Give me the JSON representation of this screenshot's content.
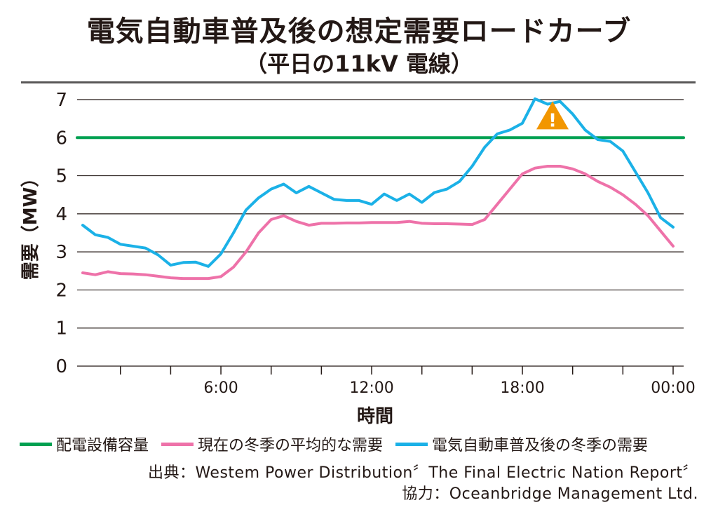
{
  "chart_data": {
    "type": "line",
    "title": "電気自動車普及後の想定需要ロードカーブ",
    "subtitle": "（平日の11kV 電線）",
    "xlabel": "時間",
    "ylabel": "需要（MW）",
    "ylim": [
      0,
      7
    ],
    "yticks": [
      "0",
      "1",
      "2",
      "3",
      "4",
      "5",
      "6",
      "7"
    ],
    "xtick_labels": [
      {
        "hour": 6,
        "label": "6:00"
      },
      {
        "hour": 12,
        "label": "12:00"
      },
      {
        "hour": 18,
        "label": "18:00"
      },
      {
        "hour": 24,
        "label": "00:00"
      }
    ],
    "grid": true,
    "legend_position": "bottom",
    "x_hours": [
      0.5,
      1,
      1.5,
      2,
      2.5,
      3,
      3.5,
      4,
      4.5,
      5,
      5.5,
      6,
      6.5,
      7,
      7.5,
      8,
      8.5,
      9,
      9.5,
      10,
      10.5,
      11,
      11.5,
      12,
      12.5,
      13,
      13.5,
      14,
      14.5,
      15,
      15.5,
      16,
      16.5,
      17,
      17.5,
      18,
      18.5,
      19,
      19.5,
      20,
      20.5,
      21,
      21.5,
      22,
      22.5,
      23,
      23.5,
      24
    ],
    "series": [
      {
        "name": "配電設備容量",
        "color": "#00a051",
        "values": [
          6,
          6,
          6,
          6,
          6,
          6,
          6,
          6,
          6,
          6,
          6,
          6,
          6,
          6,
          6,
          6,
          6,
          6,
          6,
          6,
          6,
          6,
          6,
          6,
          6,
          6,
          6,
          6,
          6,
          6,
          6,
          6,
          6,
          6,
          6,
          6,
          6,
          6,
          6,
          6,
          6,
          6,
          6,
          6,
          6,
          6,
          6,
          6
        ]
      },
      {
        "name": "現在の冬季の平均的な需要",
        "color": "#ee72a9",
        "values": [
          2.45,
          2.4,
          2.48,
          2.43,
          2.42,
          2.4,
          2.36,
          2.32,
          2.3,
          2.3,
          2.3,
          2.35,
          2.6,
          3.0,
          3.5,
          3.85,
          3.95,
          3.8,
          3.7,
          3.75,
          3.75,
          3.76,
          3.76,
          3.77,
          3.77,
          3.77,
          3.8,
          3.75,
          3.74,
          3.74,
          3.73,
          3.72,
          3.85,
          4.25,
          4.65,
          5.05,
          5.2,
          5.25,
          5.25,
          5.18,
          5.05,
          4.85,
          4.7,
          4.5,
          4.25,
          3.95,
          3.55,
          3.15
        ]
      },
      {
        "name": "電気自動車普及後の冬季の需要",
        "color": "#1bb1e7",
        "values": [
          3.7,
          3.45,
          3.38,
          3.2,
          3.15,
          3.1,
          2.92,
          2.65,
          2.72,
          2.73,
          2.62,
          2.95,
          3.5,
          4.1,
          4.42,
          4.65,
          4.78,
          4.55,
          4.72,
          4.55,
          4.38,
          4.35,
          4.35,
          4.25,
          4.52,
          4.35,
          4.52,
          4.3,
          4.56,
          4.65,
          4.85,
          5.25,
          5.75,
          6.1,
          6.2,
          6.38,
          7.02,
          6.88,
          6.95,
          6.62,
          6.2,
          5.95,
          5.9,
          5.65,
          5.1,
          4.55,
          3.9,
          3.65
        ]
      }
    ],
    "annotations": [
      {
        "type": "warning-icon",
        "hour": 19.2,
        "value": 6.55,
        "color": "#f29600"
      }
    ]
  },
  "source": {
    "line1": "出典：Westem Power Distribution〞The Final Electric Nation Report〞",
    "line2": "協力：Oceanbridge  Management Ltd."
  }
}
